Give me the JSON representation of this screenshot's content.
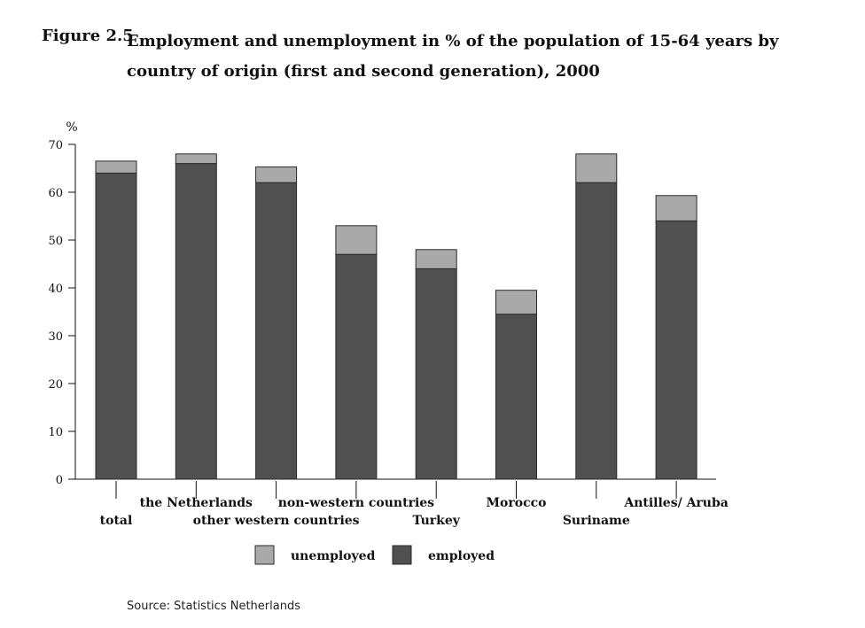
{
  "figure": {
    "label": "Figure 2.5",
    "title": "Employment and unemployment in % of the population of 15-64 years by country of origin (first and second generation), 2000",
    "source": "Source: Statistics Netherlands"
  },
  "chart_data": {
    "type": "bar",
    "stacked": true,
    "ylabel": "%",
    "ylim": [
      0,
      70
    ],
    "yticks": [
      0,
      10,
      20,
      30,
      40,
      50,
      60,
      70
    ],
    "categories": [
      "total",
      "the Netherlands",
      "other western countries",
      "non-western countries",
      "Turkey",
      "Morocco",
      "Suriname",
      "Antilles/ Aruba"
    ],
    "label_rows": [
      "low",
      "high",
      "low",
      "high",
      "low",
      "high",
      "low",
      "high"
    ],
    "series": [
      {
        "name": "employed",
        "color": "#505050",
        "values": [
          64,
          66,
          62,
          47,
          44,
          34.5,
          62,
          54
        ]
      },
      {
        "name": "unemployed",
        "color": "#a9a9a9",
        "values": [
          2.5,
          2,
          3.3,
          6,
          4,
          5,
          6,
          5.3
        ]
      }
    ],
    "legend": {
      "position": "bottom",
      "entries": [
        "unemployed",
        "employed"
      ]
    },
    "grid": false
  }
}
